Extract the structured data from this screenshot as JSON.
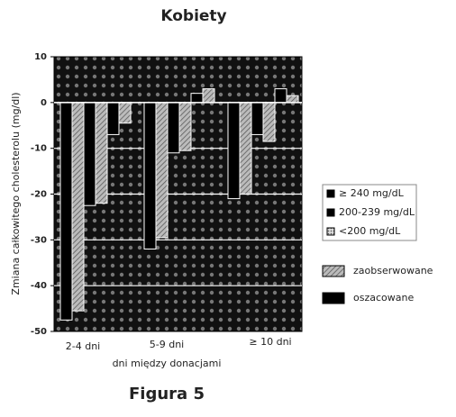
{
  "chart_data": {
    "type": "bar",
    "title": "Kobiety",
    "ylabel": "Zmiana całkowitego cholesterolu (mg/dl)",
    "xlabel": "dni między donacjami",
    "caption": "Figura 5",
    "categories": [
      "2-4 dni",
      "5-9 dni",
      "≥ 10 dni"
    ],
    "subgroups": [
      "≥ 240 mg/dL",
      "200-239 mg/dL",
      "<200 mg/dL"
    ],
    "series": [
      {
        "name": "oszacowane",
        "color": "#000000",
        "values": [
          [
            -47.5,
            -22.5,
            -7
          ],
          [
            -32,
            -11,
            2
          ],
          [
            -21,
            -7,
            3
          ]
        ]
      },
      {
        "name": "zaobserwowane",
        "color": "#9a9a9a",
        "values": [
          [
            -45.5,
            -22,
            -4.5
          ],
          [
            -29.5,
            -10.5,
            3
          ],
          [
            -20,
            -8.5,
            1.5
          ]
        ]
      }
    ],
    "ylim": [
      -50,
      10
    ],
    "yticks": [
      -50,
      -40,
      -30,
      -20,
      -10,
      0,
      10
    ],
    "grid": true
  }
}
